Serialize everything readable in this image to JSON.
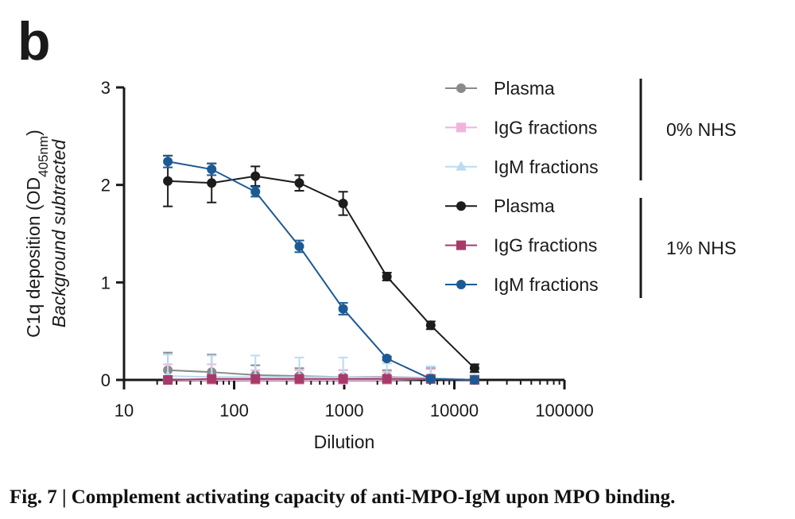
{
  "panel_letter": "b",
  "caption": "Fig. 7 | Complement activating capacity of anti-MPO-IgM upon MPO binding.",
  "chart_data": {
    "type": "line",
    "xscale": "log",
    "xlim": [
      10,
      100000
    ],
    "ylim": [
      0,
      3
    ],
    "xticks": [
      "10",
      "100",
      "1000",
      "10000",
      "100000"
    ],
    "yticks": [
      "0",
      "1",
      "2",
      "3"
    ],
    "xlabel": "Dilution",
    "ylabel_main": "C1q deposition (OD",
    "ylabel_sub": "405nm",
    "ylabel_close": ")",
    "ylabel_line2": "Background subtracted",
    "legend_groups": [
      {
        "label": "0% NHS"
      },
      {
        "label": "1% NHS"
      }
    ],
    "x": [
      25,
      62.5,
      156,
      391,
      977,
      2441,
      6104,
      15259
    ],
    "series": [
      {
        "name": "Plasma",
        "group": "0% NHS",
        "color": "#8a8a8a",
        "marker": "circle",
        "values": [
          0.1,
          0.08,
          0.05,
          0.04,
          0.03,
          0.03,
          0.02,
          0.0
        ],
        "errors": [
          0.18,
          0.18,
          0.1,
          0.08,
          0.07,
          0.07,
          0.1,
          0.05
        ]
      },
      {
        "name": "IgG fractions",
        "group": "0% NHS",
        "color": "#f0b4dc",
        "marker": "square",
        "values": [
          0.0,
          0.0,
          0.0,
          0.0,
          0.0,
          0.0,
          0.01,
          0.0
        ],
        "errors": [
          0.16,
          0.16,
          0.1,
          0.1,
          0.1,
          0.08,
          0.1,
          0.05
        ]
      },
      {
        "name": "IgM fractions",
        "group": "0% NHS",
        "color": "#b8dcf2",
        "marker": "triangle",
        "values": [
          0.04,
          0.03,
          0.03,
          0.03,
          0.03,
          0.02,
          0.02,
          0.0
        ],
        "errors": [
          0.22,
          0.22,
          0.22,
          0.2,
          0.2,
          0.15,
          0.12,
          0.05
        ]
      },
      {
        "name": "Plasma",
        "group": "1% NHS",
        "color": "#1c1c1c",
        "marker": "circle",
        "values": [
          2.04,
          2.02,
          2.09,
          2.02,
          1.81,
          1.06,
          0.56,
          0.12
        ],
        "errors": [
          0.26,
          0.2,
          0.1,
          0.08,
          0.12,
          0.04,
          0.04,
          0.04
        ]
      },
      {
        "name": "IgG fractions",
        "group": "1% NHS",
        "color": "#a83a6a",
        "marker": "square",
        "values": [
          0.0,
          0.01,
          0.01,
          0.01,
          0.01,
          0.01,
          0.01,
          0.0
        ],
        "errors": [
          0.0,
          0.0,
          0.0,
          0.0,
          0.0,
          0.0,
          0.0,
          0.0
        ]
      },
      {
        "name": "IgM fractions",
        "group": "1% NHS",
        "color": "#1d5a93",
        "marker": "circle",
        "values": [
          2.24,
          2.16,
          1.93,
          1.37,
          0.73,
          0.22,
          0.01,
          0.0
        ],
        "errors": [
          0.06,
          0.06,
          0.05,
          0.06,
          0.06,
          0.02,
          0.02,
          0.02
        ]
      }
    ]
  }
}
